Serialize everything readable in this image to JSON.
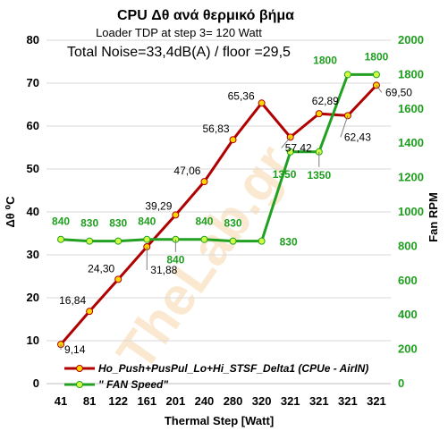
{
  "chart_data": {
    "type": "line",
    "title": "CPU  Δθ   ανά θερμικό βήμα",
    "subtitle": "Loader TDP at step 3= 120 Watt",
    "annotation": "Total Noise=33,4dB(A) / floor =29,5",
    "watermark": "TheLab.gr",
    "xlabel": "Thermal Step [Watt]",
    "ylabel_left": "Δθ ⁰C",
    "ylabel_right": "Fan RPM",
    "categories": [
      "41",
      "81",
      "122",
      "161",
      "201",
      "240",
      "280",
      "320",
      "321",
      "321",
      "321",
      "321"
    ],
    "ylim_left": [
      0,
      80
    ],
    "yticks_left": [
      "0",
      "10",
      "20",
      "30",
      "40",
      "50",
      "60",
      "70",
      "80"
    ],
    "ylim_right": [
      0,
      2000
    ],
    "yticks_right": [
      "0",
      "200",
      "400",
      "600",
      "800",
      "1000",
      "1200",
      "1400",
      "1600",
      "1800",
      "2000"
    ],
    "grid": true,
    "legend_position": "bottom-inside",
    "series": [
      {
        "name": "Ho_Push+PusPul_Lo+Hi_STSF_Delta1 (CPUe - AirIN)",
        "axis": "left",
        "color": "#b00000",
        "marker_fill": "#ffd400",
        "values": [
          9.14,
          16.84,
          24.3,
          31.88,
          39.29,
          47.06,
          56.83,
          65.36,
          57.42,
          62.89,
          62.43,
          69.5
        ],
        "labels": [
          "9,14",
          "16,84",
          "24,30",
          "31,88",
          "39,29",
          "47,06",
          "56,83",
          "65,36",
          "57,42",
          "62,89",
          "62,43",
          "69,50"
        ]
      },
      {
        "name": "\" FAN Speed\"",
        "axis": "right",
        "color": "#22a022",
        "marker_fill": "#d0ff40",
        "values": [
          840,
          830,
          830,
          840,
          840,
          840,
          830,
          830,
          1350,
          1350,
          1800,
          1800
        ],
        "labels": [
          "840",
          "830",
          "830",
          "840",
          "840",
          "840",
          "830",
          "830",
          "1350",
          "1350",
          "1800",
          "1800"
        ]
      }
    ]
  }
}
